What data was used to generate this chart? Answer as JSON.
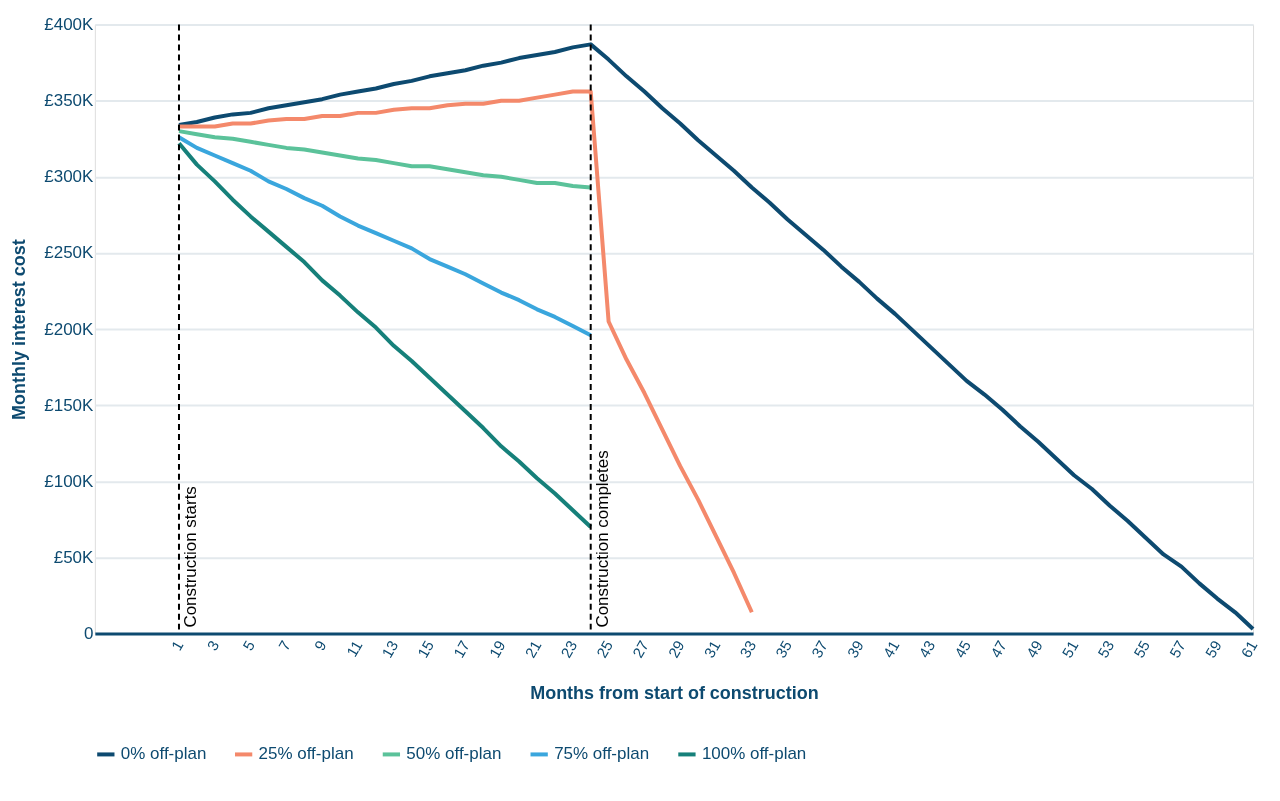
{
  "chart_data": {
    "type": "line",
    "xlabel": "Months from start of construction",
    "ylabel": "Monthly interest cost",
    "xlim": [
      -3.7,
      61
    ],
    "xticks": [
      1,
      3,
      5,
      7,
      9,
      11,
      13,
      15,
      17,
      19,
      21,
      23,
      25,
      27,
      29,
      31,
      33,
      35,
      37,
      39,
      41,
      43,
      45,
      47,
      49,
      51,
      53,
      55,
      57,
      59,
      61
    ],
    "ylim": [
      0,
      400
    ],
    "yticks": [
      0,
      {
        "value": 50,
        "label": "£50K"
      },
      {
        "value": 100,
        "label": "£100K"
      },
      {
        "value": 150,
        "label": "£150K"
      },
      {
        "value": 200,
        "label": "£200K"
      },
      {
        "value": 250,
        "label": "£250K"
      },
      {
        "value": 300,
        "label": "£300K"
      },
      {
        "value": 350,
        "label": "£350K"
      },
      {
        "value": 400,
        "label": "£400K"
      }
    ],
    "grid": "y",
    "legend": "bottom",
    "line_style": "solid",
    "marker": "none",
    "ref_lines": [
      {
        "axis": "x",
        "value": 1,
        "label": "Construction starts",
        "color": "#000000",
        "line_style": "dashed"
      },
      {
        "axis": "x",
        "value": 24,
        "label": "Construction completes",
        "color": "#000000",
        "line_style": "dashed"
      }
    ],
    "series": [
      {
        "name": "0% off-plan",
        "color": "#0d4a70",
        "x": [
          1,
          2,
          3,
          4,
          5,
          6,
          7,
          8,
          9,
          10,
          11,
          12,
          13,
          14,
          15,
          16,
          17,
          18,
          19,
          20,
          21,
          22,
          23,
          24,
          25,
          26,
          27,
          28,
          29,
          30,
          31,
          32,
          33,
          34,
          35,
          36,
          37,
          38,
          39,
          40,
          41,
          42,
          43,
          44,
          45,
          46,
          47,
          48,
          49,
          50,
          51,
          52,
          53,
          54,
          55,
          56,
          57,
          58,
          59,
          60,
          61
        ],
        "values": [
          334,
          336,
          339,
          341,
          342,
          345,
          347,
          349,
          351,
          354,
          356,
          358,
          361,
          363,
          366,
          368,
          370,
          373,
          375,
          378,
          380,
          382,
          385,
          387,
          377,
          366,
          356,
          345,
          335,
          324,
          314,
          304,
          293,
          283,
          272,
          262,
          252,
          241,
          231,
          220,
          210,
          199,
          188,
          177,
          166,
          157,
          147,
          136,
          126,
          115,
          104,
          95,
          84,
          74,
          63,
          52,
          44,
          33,
          23,
          14,
          3
        ]
      },
      {
        "name": "25% off-plan",
        "color": "#f4896b",
        "x": [
          1,
          2,
          3,
          4,
          5,
          6,
          7,
          8,
          9,
          10,
          11,
          12,
          13,
          14,
          15,
          16,
          17,
          18,
          19,
          20,
          21,
          22,
          23,
          24,
          25,
          26,
          27,
          28,
          29,
          30,
          31,
          32,
          33
        ],
        "values": [
          333,
          333,
          333,
          335,
          335,
          337,
          338,
          338,
          340,
          340,
          342,
          342,
          344,
          345,
          345,
          347,
          348,
          348,
          350,
          350,
          352,
          354,
          356,
          356,
          205,
          180,
          158,
          134,
          110,
          88,
          64,
          40,
          14
        ]
      },
      {
        "name": "50% off-plan",
        "color": "#5bc29a",
        "x": [
          1,
          2,
          3,
          4,
          5,
          6,
          7,
          8,
          9,
          10,
          11,
          12,
          13,
          14,
          15,
          16,
          17,
          18,
          19,
          20,
          21,
          22,
          23,
          24
        ],
        "values": [
          330,
          328,
          326,
          325,
          323,
          321,
          319,
          318,
          316,
          314,
          312,
          311,
          309,
          307,
          307,
          305,
          303,
          301,
          300,
          298,
          296,
          296,
          294,
          293
        ]
      },
      {
        "name": "75% off-plan",
        "color": "#3aa6dd",
        "x": [
          1,
          2,
          3,
          4,
          5,
          6,
          7,
          8,
          9,
          10,
          11,
          12,
          13,
          14,
          15,
          16,
          17,
          18,
          19,
          20,
          21,
          22,
          23,
          24
        ],
        "values": [
          326,
          319,
          314,
          309,
          304,
          297,
          292,
          286,
          281,
          274,
          268,
          263,
          258,
          253,
          246,
          241,
          236,
          230,
          224,
          219,
          213,
          208,
          202,
          196
        ]
      },
      {
        "name": "100% off-plan",
        "color": "#16807a",
        "x": [
          1,
          2,
          3,
          4,
          5,
          6,
          7,
          8,
          9,
          10,
          11,
          12,
          13,
          14,
          15,
          16,
          17,
          18,
          19,
          20,
          21,
          22,
          23,
          24
        ],
        "values": [
          322,
          308,
          297,
          285,
          274,
          264,
          254,
          244,
          232,
          222,
          211,
          201,
          189,
          179,
          168,
          157,
          146,
          135,
          123,
          113,
          102,
          92,
          81,
          70
        ]
      }
    ]
  }
}
